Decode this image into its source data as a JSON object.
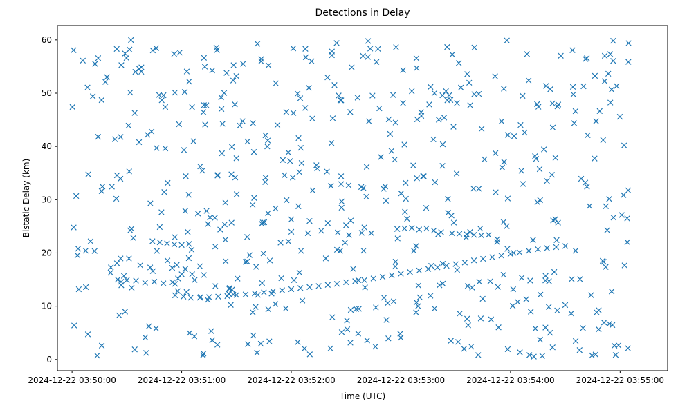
{
  "chart_data": {
    "type": "scatter",
    "title": "Detections in Delay",
    "xlabel": "Time (UTC)",
    "ylabel": "Bistatic Delay (km)",
    "marker": "x",
    "color": "#1f77b4",
    "grid": false,
    "xlim": [
      "2024-12-22 03:49:52",
      "2024-12-22 03:55:26"
    ],
    "ylim": [
      -2.1,
      62.7
    ],
    "xticks": [
      "2024-12-22 03:50:00",
      "2024-12-22 03:51:00",
      "2024-12-22 03:52:00",
      "2024-12-22 03:53:00",
      "2024-12-22 03:54:00",
      "2024-12-22 03:55:00"
    ],
    "yticks": [
      0,
      10,
      20,
      30,
      40,
      50,
      60
    ],
    "track_points": [
      {
        "x": "2024-12-22 03:51:01",
        "y": 11.8
      },
      {
        "x": "2024-12-22 03:51:05",
        "y": 11.6
      },
      {
        "x": "2024-12-22 03:51:10",
        "y": 11.6
      },
      {
        "x": "2024-12-22 03:51:15",
        "y": 11.7
      },
      {
        "x": "2024-12-22 03:51:20",
        "y": 11.8
      },
      {
        "x": "2024-12-22 03:51:25",
        "y": 11.9
      },
      {
        "x": "2024-12-22 03:51:30",
        "y": 12.1
      },
      {
        "x": "2024-12-22 03:51:35",
        "y": 12.2
      },
      {
        "x": "2024-12-22 03:51:40",
        "y": 12.4
      },
      {
        "x": "2024-12-22 03:51:45",
        "y": 12.6
      },
      {
        "x": "2024-12-22 03:51:50",
        "y": 12.8
      },
      {
        "x": "2024-12-22 03:51:55",
        "y": 13.0
      },
      {
        "x": "2024-12-22 03:52:00",
        "y": 13.2
      },
      {
        "x": "2024-12-22 03:52:05",
        "y": 13.4
      },
      {
        "x": "2024-12-22 03:52:10",
        "y": 13.6
      },
      {
        "x": "2024-12-22 03:52:15",
        "y": 13.8
      },
      {
        "x": "2024-12-22 03:52:20",
        "y": 14.0
      },
      {
        "x": "2024-12-22 03:52:25",
        "y": 14.2
      },
      {
        "x": "2024-12-22 03:52:30",
        "y": 14.5
      },
      {
        "x": "2024-12-22 03:52:35",
        "y": 14.7
      },
      {
        "x": "2024-12-22 03:52:40",
        "y": 14.9
      },
      {
        "x": "2024-12-22 03:52:45",
        "y": 15.2
      },
      {
        "x": "2024-12-22 03:52:50",
        "y": 15.5
      },
      {
        "x": "2024-12-22 03:52:55",
        "y": 15.8
      },
      {
        "x": "2024-12-22 03:53:00",
        "y": 16.1
      },
      {
        "x": "2024-12-22 03:53:05",
        "y": 16.4
      },
      {
        "x": "2024-12-22 03:53:10",
        "y": 16.7
      },
      {
        "x": "2024-12-22 03:53:15",
        "y": 17.0
      },
      {
        "x": "2024-12-22 03:53:20",
        "y": 17.3
      },
      {
        "x": "2024-12-22 03:53:25",
        "y": 17.6
      },
      {
        "x": "2024-12-22 03:53:30",
        "y": 17.9
      },
      {
        "x": "2024-12-22 03:53:35",
        "y": 18.2
      },
      {
        "x": "2024-12-22 03:53:40",
        "y": 18.6
      },
      {
        "x": "2024-12-22 03:53:45",
        "y": 18.9
      },
      {
        "x": "2024-12-22 03:53:50",
        "y": 19.2
      },
      {
        "x": "2024-12-22 03:53:55",
        "y": 19.5
      },
      {
        "x": "2024-12-22 03:54:00",
        "y": 19.8
      },
      {
        "x": "2024-12-22 03:54:05",
        "y": 20.1
      },
      {
        "x": "2024-12-22 03:54:10",
        "y": 20.4
      },
      {
        "x": "2024-12-22 03:54:15",
        "y": 20.7
      },
      {
        "x": "2024-12-22 03:54:20",
        "y": 20.9
      },
      {
        "x": "2024-12-22 03:54:25",
        "y": 21.1
      },
      {
        "x": "2024-12-22 03:54:30",
        "y": 21.3
      },
      {
        "x": "2024-12-22 03:50:55",
        "y": 14.5
      },
      {
        "x": "2024-12-22 03:50:58",
        "y": 15.2
      },
      {
        "x": "2024-12-22 03:51:00",
        "y": 16.0
      },
      {
        "x": "2024-12-22 03:51:02",
        "y": 17.0
      },
      {
        "x": "2024-12-22 03:50:50",
        "y": 14.3
      },
      {
        "x": "2024-12-22 03:50:45",
        "y": 14.6
      },
      {
        "x": "2024-12-22 03:50:40",
        "y": 14.4
      },
      {
        "x": "2024-12-22 03:50:35",
        "y": 14.8
      },
      {
        "x": "2024-12-22 03:50:30",
        "y": 14.9
      },
      {
        "x": "2024-12-22 03:50:25",
        "y": 15.0
      },
      {
        "x": "2024-12-22 03:50:52",
        "y": 21.8
      },
      {
        "x": "2024-12-22 03:50:56",
        "y": 21.6
      },
      {
        "x": "2024-12-22 03:51:00",
        "y": 21.5
      },
      {
        "x": "2024-12-22 03:51:04",
        "y": 21.7
      },
      {
        "x": "2024-12-22 03:50:48",
        "y": 22.0
      },
      {
        "x": "2024-12-22 03:50:44",
        "y": 22.2
      },
      {
        "x": "2024-12-22 03:52:58",
        "y": 24.5
      },
      {
        "x": "2024-12-22 03:53:02",
        "y": 24.6
      },
      {
        "x": "2024-12-22 03:53:06",
        "y": 24.7
      },
      {
        "x": "2024-12-22 03:53:10",
        "y": 24.4
      },
      {
        "x": "2024-12-22 03:53:14",
        "y": 24.6
      },
      {
        "x": "2024-12-22 03:53:18",
        "y": 24.2
      },
      {
        "x": "2024-12-22 03:53:22",
        "y": 23.9
      },
      {
        "x": "2024-12-22 03:53:28",
        "y": 23.7
      },
      {
        "x": "2024-12-22 03:53:32",
        "y": 23.6
      },
      {
        "x": "2024-12-22 03:53:36",
        "y": 23.5
      },
      {
        "x": "2024-12-22 03:53:40",
        "y": 23.4
      },
      {
        "x": "2024-12-22 03:52:30",
        "y": 25.2
      },
      {
        "x": "2024-12-22 03:52:20",
        "y": 25.6
      },
      {
        "x": "2024-12-22 03:52:10",
        "y": 26.0
      },
      {
        "x": "2024-12-22 03:52:40",
        "y": 24.8
      },
      {
        "x": "2024-12-22 03:52:00",
        "y": 26.3
      },
      {
        "x": "2024-12-22 03:53:44",
        "y": 23.3
      },
      {
        "x": "2024-12-22 03:53:48",
        "y": 23.4
      }
    ],
    "random_seed": 424242,
    "random_point_count": 560
  }
}
